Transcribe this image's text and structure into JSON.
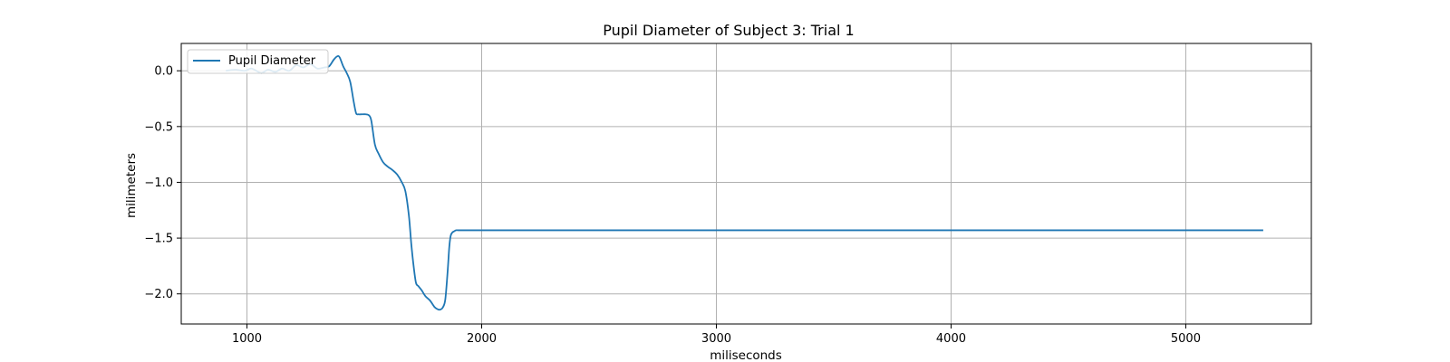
{
  "chart_data": {
    "type": "line",
    "title": "Pupil Diameter of Subject 3: Trial 1",
    "xlabel": "miliseconds",
    "ylabel": "milimeters",
    "xlim": [
      720,
      5535
    ],
    "ylim": [
      -2.27,
      0.245
    ],
    "xticks": [
      1000,
      2000,
      3000,
      4000,
      5000
    ],
    "yticks": [
      0.0,
      -0.5,
      -1.0,
      -1.5,
      -2.0
    ],
    "xtick_labels": [
      "1000",
      "2000",
      "3000",
      "4000",
      "5000"
    ],
    "ytick_labels": [
      "0.0",
      "−0.5",
      "−1.0",
      "−1.5",
      "−2.0"
    ],
    "grid": true,
    "legend_position": "top-left",
    "series": [
      {
        "name": "Pupil Diameter",
        "color": "#1f77b4",
        "x": [
          910,
          950,
          990,
          1020,
          1060,
          1090,
          1120,
          1150,
          1180,
          1210,
          1240,
          1270,
          1300,
          1330,
          1350,
          1370,
          1385,
          1395,
          1410,
          1425,
          1440,
          1455,
          1465,
          1475,
          1490,
          1505,
          1520,
          1530,
          1545,
          1560,
          1580,
          1600,
          1620,
          1640,
          1660,
          1675,
          1690,
          1700,
          1710,
          1720,
          1730,
          1745,
          1760,
          1780,
          1800,
          1815,
          1825,
          1835,
          1845,
          1855,
          1862,
          1868,
          1875,
          1882,
          1890,
          1900,
          1920,
          2000,
          3000,
          4000,
          5000,
          5330
        ],
        "y": [
          0.0,
          0.01,
          0.0,
          0.02,
          -0.02,
          0.01,
          -0.01,
          0.02,
          0.0,
          0.05,
          0.03,
          0.06,
          0.02,
          0.03,
          0.04,
          0.1,
          0.13,
          0.12,
          0.04,
          -0.02,
          -0.1,
          -0.28,
          -0.38,
          -0.39,
          -0.39,
          -0.39,
          -0.4,
          -0.45,
          -0.66,
          -0.74,
          -0.82,
          -0.86,
          -0.89,
          -0.93,
          -1.0,
          -1.08,
          -1.3,
          -1.55,
          -1.75,
          -1.9,
          -1.93,
          -1.97,
          -2.02,
          -2.06,
          -2.12,
          -2.14,
          -2.14,
          -2.12,
          -2.05,
          -1.8,
          -1.58,
          -1.48,
          -1.45,
          -1.44,
          -1.43,
          -1.43,
          -1.43,
          -1.43,
          -1.43,
          -1.43,
          -1.43,
          -1.43
        ]
      }
    ]
  }
}
